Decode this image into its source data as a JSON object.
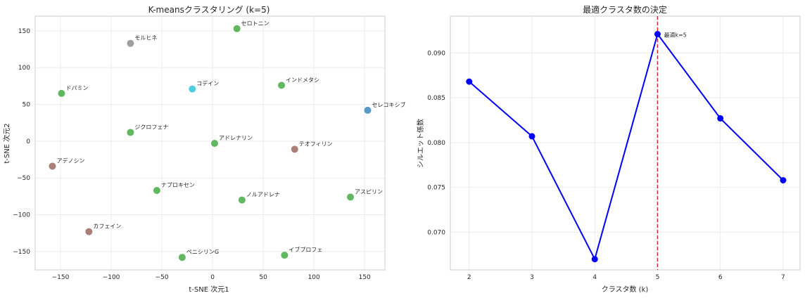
{
  "chart_data": [
    {
      "type": "scatter",
      "title": "K-meansクラスタリング (k=5)",
      "xlabel": "t-SNE 次元1",
      "ylabel": "t-SNE 次元2",
      "xlim": [
        -175,
        170
      ],
      "ylim": [
        -175,
        170
      ],
      "xticks": [
        -150,
        -100,
        -50,
        0,
        50,
        100,
        150
      ],
      "yticks": [
        -150,
        -100,
        -50,
        0,
        50,
        100,
        150
      ],
      "grid": true,
      "colors": {
        "green": "#2ca02c",
        "gray": "#7f7f7f",
        "cyan": "#17becf",
        "blue": "#1f77b4",
        "brown": "#8c564b"
      },
      "points": [
        {
          "label": "セロトニン",
          "x": 24,
          "y": 153,
          "color": "green"
        },
        {
          "label": "モルヒネ",
          "x": -81,
          "y": 133,
          "color": "gray"
        },
        {
          "label": "インドメタシ",
          "x": 68,
          "y": 76,
          "color": "green"
        },
        {
          "label": "コデイン",
          "x": -20,
          "y": 71,
          "color": "cyan"
        },
        {
          "label": "ドパミン",
          "x": -149,
          "y": 65,
          "color": "green"
        },
        {
          "label": "セレコキシブ",
          "x": 153,
          "y": 42,
          "color": "blue"
        },
        {
          "label": "ジクロフェナ",
          "x": -81,
          "y": 12,
          "color": "green"
        },
        {
          "label": "アドレナリン",
          "x": 2,
          "y": -3,
          "color": "green"
        },
        {
          "label": "テオフィリン",
          "x": 81,
          "y": -11,
          "color": "brown"
        },
        {
          "label": "アデノシン",
          "x": -158,
          "y": -34,
          "color": "brown"
        },
        {
          "label": "ナプロキセン",
          "x": -55,
          "y": -67,
          "color": "green"
        },
        {
          "label": "アスピリン",
          "x": 136,
          "y": -76,
          "color": "green"
        },
        {
          "label": "ノルアドレナ",
          "x": 29,
          "y": -80,
          "color": "green"
        },
        {
          "label": "カフェイン",
          "x": -122,
          "y": -123,
          "color": "brown"
        },
        {
          "label": "ペニシリンG",
          "x": -30,
          "y": -158,
          "color": "green"
        },
        {
          "label": "イブプロフェ",
          "x": 71,
          "y": -155,
          "color": "green"
        }
      ]
    },
    {
      "type": "line",
      "title": "最適クラスタ数の決定",
      "xlabel": "クラスタ数 (k)",
      "ylabel": "シルエット係数",
      "x": [
        2,
        3,
        4,
        5,
        6,
        7
      ],
      "values": [
        0.0868,
        0.0807,
        0.067,
        0.0921,
        0.0827,
        0.0758
      ],
      "xlim": [
        1.7,
        7.27
      ],
      "ylim": [
        0.0658,
        0.0941
      ],
      "xticks": [
        2,
        3,
        4,
        5,
        6,
        7
      ],
      "yticks": [
        "0.070",
        "0.075",
        "0.080",
        "0.085",
        "0.090"
      ],
      "grid": true,
      "line_color": "#0000ff",
      "annotation": {
        "text": "最適k=5",
        "x": 5,
        "line_color": "#d62728"
      }
    }
  ]
}
